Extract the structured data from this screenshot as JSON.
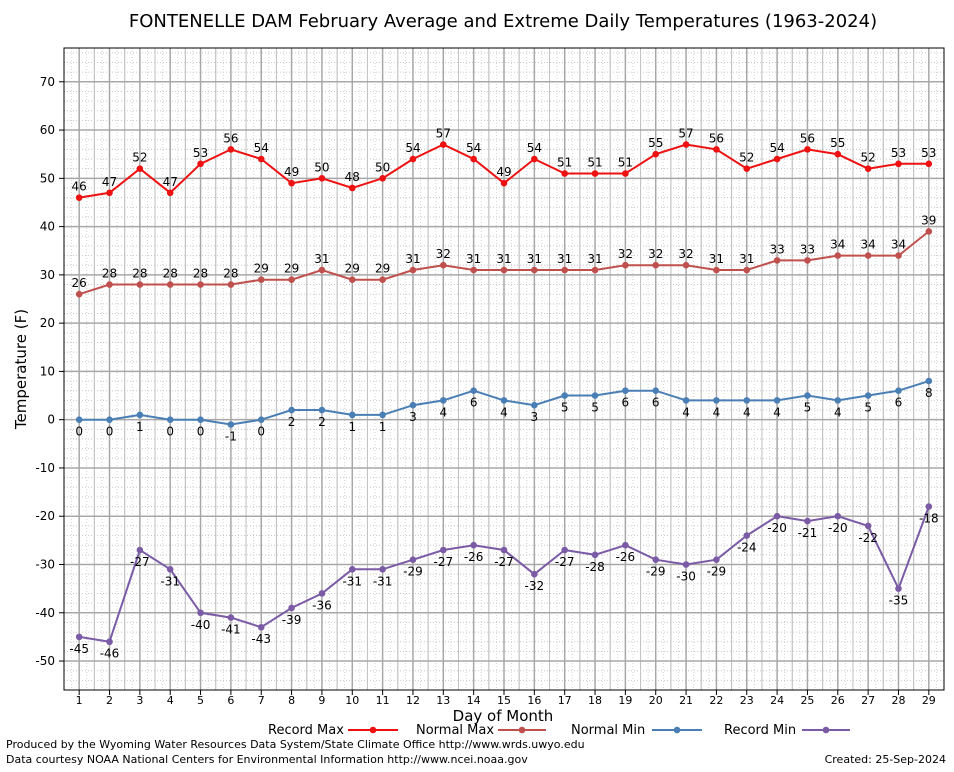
{
  "chart_data": {
    "type": "line",
    "title": "FONTENELLE DAM February Average and Extreme Daily Temperatures (1963-2024)",
    "xlabel": "Day of Month",
    "ylabel": "Temperature (F)",
    "xlim": [
      0.5,
      29.5
    ],
    "ylim": [
      -56,
      77
    ],
    "yticks": [
      70,
      60,
      50,
      40,
      30,
      20,
      10,
      0,
      -10,
      -20,
      -30,
      -40,
      -50
    ],
    "x": [
      1,
      2,
      3,
      4,
      5,
      6,
      7,
      8,
      9,
      10,
      11,
      12,
      13,
      14,
      15,
      16,
      17,
      18,
      19,
      20,
      21,
      22,
      23,
      24,
      25,
      26,
      27,
      28,
      29
    ],
    "grid": true,
    "legend_position": "bottom",
    "series": [
      {
        "name": "Record Max",
        "color": "#ee1111",
        "label_pos": "above",
        "values": [
          46,
          47,
          52,
          47,
          53,
          56,
          54,
          49,
          50,
          48,
          50,
          54,
          57,
          54,
          49,
          54,
          51,
          51,
          51,
          55,
          57,
          56,
          52,
          54,
          56,
          55,
          52,
          53,
          53
        ]
      },
      {
        "name": "Normal Max",
        "color": "#c0504d",
        "label_pos": "above",
        "values": [
          26,
          28,
          28,
          28,
          28,
          28,
          29,
          29,
          31,
          29,
          29,
          31,
          32,
          31,
          31,
          31,
          31,
          31,
          32,
          32,
          32,
          31,
          31,
          33,
          33,
          34,
          34,
          34,
          39
        ]
      },
      {
        "name": "Normal Min",
        "color": "#4a7fb5",
        "label_pos": "below",
        "values": [
          0,
          0,
          1,
          0,
          0,
          -1,
          0,
          2,
          2,
          1,
          1,
          3,
          4,
          6,
          4,
          3,
          5,
          5,
          6,
          6,
          4,
          4,
          4,
          4,
          5,
          4,
          5,
          6,
          8
        ]
      },
      {
        "name": "Record Min",
        "color": "#7b5ba6",
        "label_pos": "below",
        "values": [
          -45,
          -46,
          -27,
          -31,
          -40,
          -41,
          -43,
          -39,
          -36,
          -31,
          -31,
          -29,
          -27,
          -26,
          -27,
          -32,
          -27,
          -28,
          -26,
          -29,
          -30,
          -29,
          -24,
          -20,
          -21,
          -20,
          -22,
          -35,
          -18
        ]
      }
    ]
  },
  "footer": {
    "produced_by": "Produced by the Wyoming Water Resources Data System/State Climate Office http://www.wrds.uwyo.edu",
    "courtesy": "Data courtesy NOAA National Centers for Environmental Information http://www.ncei.noaa.gov",
    "created": "Created: 25-Sep-2024"
  }
}
